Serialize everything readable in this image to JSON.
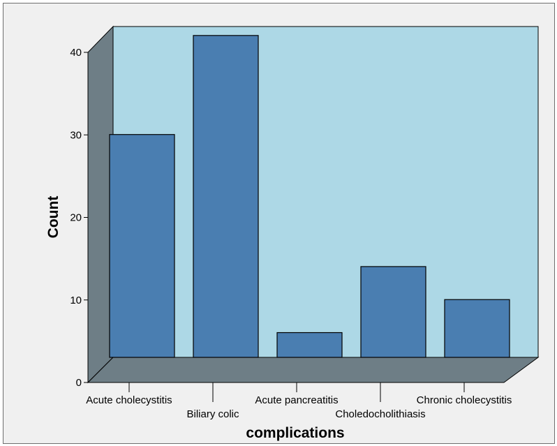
{
  "chart_data": {
    "type": "bar",
    "title": "",
    "xlabel": "complications",
    "ylabel": "Count",
    "categories": [
      "Acute cholecystitis",
      "Biliary colic",
      "Acute pancreatitis",
      "Choledocholithiasis",
      "Chronic cholecystitis"
    ],
    "values": [
      27,
      39,
      3,
      11,
      7
    ],
    "ylim": [
      0,
      40
    ],
    "yticks": [
      0,
      10,
      20,
      30,
      40
    ],
    "grid": false,
    "legend": "none",
    "style": "3d"
  },
  "colors": {
    "bar_fill": "#4a7eb1",
    "back_wall": "#add8e6",
    "side_wall": "#6e7e86",
    "floor": "#6e7e86",
    "outline": "#000000",
    "frame_bg": "#f0f0f0"
  }
}
